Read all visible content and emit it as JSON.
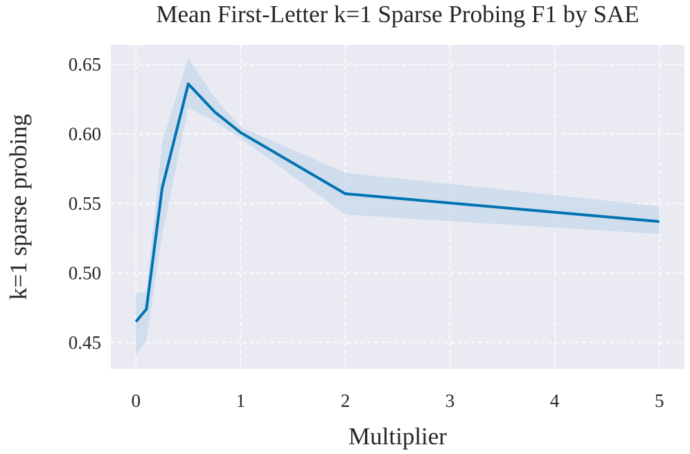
{
  "chart_data": {
    "type": "line",
    "title": "Mean First-Letter k=1 Sparse Probing F1 by SAE",
    "x_label": "Multiplier",
    "y_label": "k=1 sparse probing",
    "x": [
      0,
      0.1,
      0.25,
      0.5,
      0.75,
      1,
      2,
      5
    ],
    "values": [
      0.465,
      0.474,
      0.561,
      0.636,
      0.616,
      0.601,
      0.557,
      0.537
    ],
    "lower": [
      0.44,
      0.452,
      0.527,
      0.619,
      0.609,
      0.597,
      0.542,
      0.528
    ],
    "upper": [
      0.485,
      0.487,
      0.594,
      0.655,
      0.626,
      0.605,
      0.572,
      0.548
    ],
    "color": "#0173b2",
    "band_color": "#c5d8eb",
    "xlim": [
      -0.24,
      5.24
    ],
    "ylim": [
      0.431,
      0.664
    ],
    "xticks": [
      0,
      1,
      2,
      3,
      4,
      5
    ],
    "yticks": [
      {
        "value": 0.45,
        "label": "0.45"
      },
      {
        "value": 0.5,
        "label": "0.50"
      },
      {
        "value": 0.55,
        "label": "0.55"
      },
      {
        "value": 0.6,
        "label": "0.60"
      },
      {
        "value": 0.65,
        "label": "0.65"
      }
    ],
    "grid": true
  }
}
